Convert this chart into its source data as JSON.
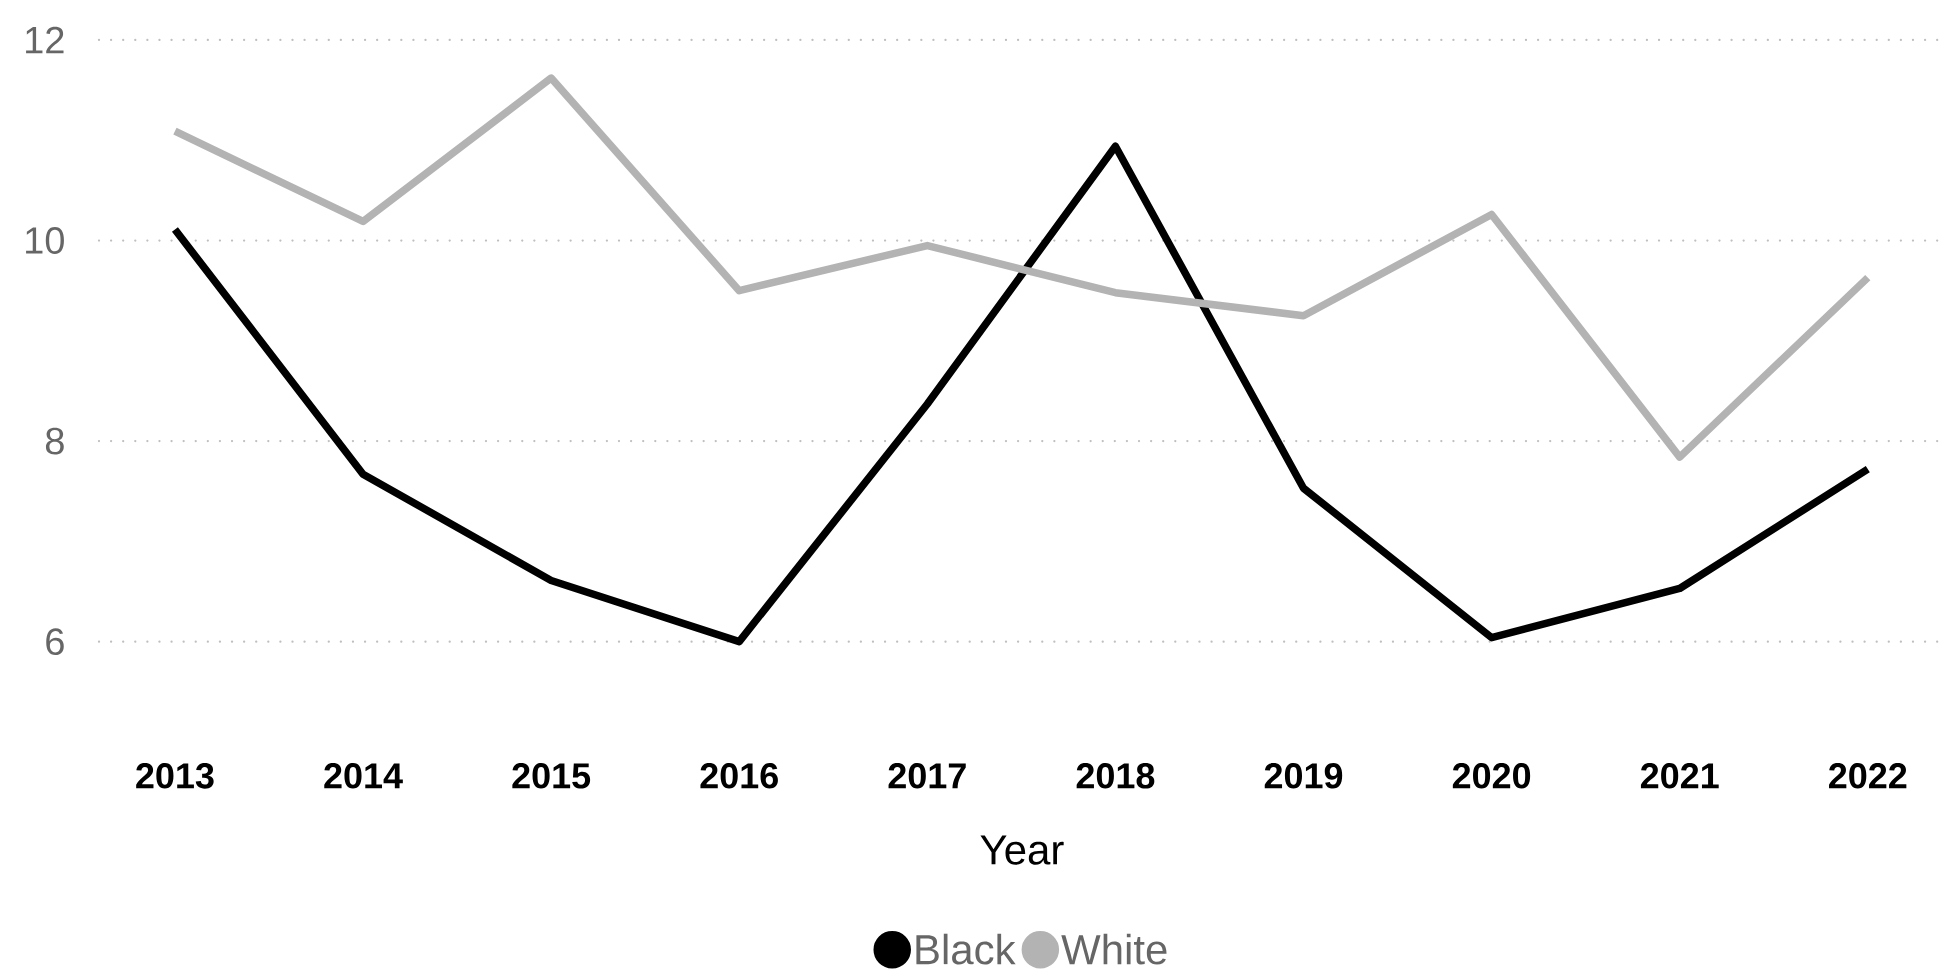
{
  "chart_data": {
    "type": "line",
    "xlabel": "Year",
    "categories": [
      "2013",
      "2014",
      "2015",
      "2016",
      "2017",
      "2018",
      "2019",
      "2020",
      "2021",
      "2022"
    ],
    "series": [
      {
        "name": "Black",
        "color": "#000000",
        "values": [
          10.11,
          7.67,
          6.61,
          6.0,
          8.37,
          10.94,
          7.53,
          6.04,
          6.53,
          7.72
        ]
      },
      {
        "name": "White",
        "color": "#b3b3b3",
        "values": [
          11.09,
          10.19,
          11.62,
          9.5,
          9.95,
          9.48,
          9.25,
          10.26,
          7.84,
          9.63
        ]
      }
    ],
    "ylim": [
      6,
      12
    ],
    "yticks": [
      6,
      8,
      10,
      12
    ],
    "grid": "y",
    "legend": "bottom",
    "marker": "none",
    "line_style": "solid"
  }
}
